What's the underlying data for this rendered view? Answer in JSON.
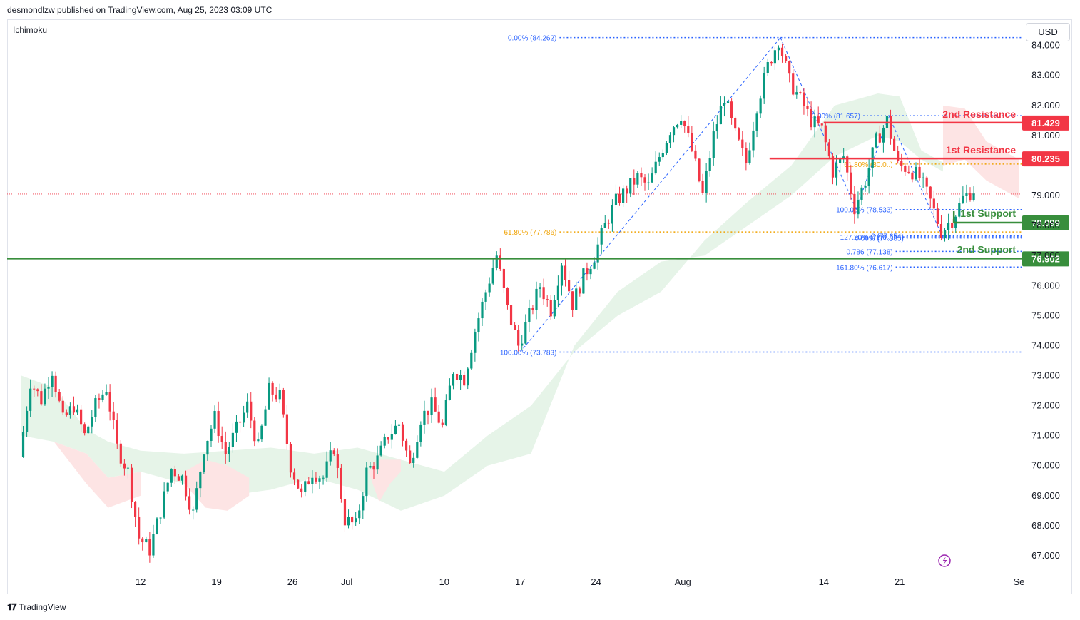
{
  "header": {
    "published_by": "desmondlzw published on TradingView.com, Aug 25, 2023 03:09 UTC"
  },
  "indicator": {
    "name": "Ichimoku"
  },
  "currency": {
    "label": "USD"
  },
  "footer": {
    "brand": "TradingView"
  },
  "colors": {
    "up": "#089981",
    "down": "#f23645",
    "resistance": "#f23645",
    "support": "#388e3c",
    "fib_blue": "#2962ff",
    "fib_orange": "#f0a202",
    "cloud_green": "#e6f4e8",
    "cloud_red": "#fde4e4"
  },
  "chart_data": {
    "type": "candlestick",
    "ylim": [
      66.5,
      84.8
    ],
    "y_ticks": [
      "84.000",
      "83.000",
      "82.000",
      "81.000",
      "79.000",
      "78.000",
      "77.000",
      "76.000",
      "75.000",
      "74.000",
      "73.000",
      "72.000",
      "71.000",
      "70.000",
      "69.000",
      "68.000",
      "67.000"
    ],
    "x_ticks": [
      {
        "label": "12",
        "day": 12
      },
      {
        "label": "19",
        "day": 19
      },
      {
        "label": "26",
        "day": 26
      },
      {
        "label": "Jul",
        "day": 31
      },
      {
        "label": "10",
        "day": 40
      },
      {
        "label": "17",
        "day": 47
      },
      {
        "label": "24",
        "day": 54
      },
      {
        "label": "Aug",
        "day": 62
      },
      {
        "label": "14",
        "day": 75
      },
      {
        "label": "21",
        "day": 82
      },
      {
        "label": "Se",
        "day": 93
      }
    ],
    "current_price": 79.05,
    "price_path": [
      [
        1,
        70.3
      ],
      [
        2,
        72.8
      ],
      [
        3,
        72.2
      ],
      [
        4,
        73.2
      ],
      [
        5,
        71.5
      ],
      [
        6,
        72.0
      ],
      [
        7,
        71.0
      ],
      [
        8,
        72.0
      ],
      [
        9,
        72.6
      ],
      [
        10,
        70.6
      ],
      [
        11,
        69.8
      ],
      [
        12,
        67.6
      ],
      [
        13,
        67.2
      ],
      [
        14,
        68.5
      ],
      [
        15,
        69.9
      ],
      [
        16,
        69.6
      ],
      [
        17,
        68.4
      ],
      [
        18,
        70.6
      ],
      [
        19,
        71.6
      ],
      [
        20,
        70.4
      ],
      [
        21,
        71.2
      ],
      [
        22,
        72.0
      ],
      [
        23,
        70.6
      ],
      [
        24,
        72.5
      ],
      [
        25,
        72.3
      ],
      [
        26,
        70.0
      ],
      [
        27,
        69.0
      ],
      [
        28,
        69.8
      ],
      [
        29,
        69.6
      ],
      [
        30,
        70.6
      ],
      [
        31,
        68.2
      ],
      [
        32,
        68.0
      ],
      [
        33,
        69.8
      ],
      [
        34,
        70.2
      ],
      [
        35,
        71.0
      ],
      [
        36,
        71.4
      ],
      [
        37,
        70.0
      ],
      [
        38,
        71.6
      ],
      [
        39,
        72.0
      ],
      [
        40,
        71.3
      ],
      [
        41,
        73.2
      ],
      [
        42,
        72.9
      ],
      [
        43,
        74.5
      ],
      [
        44,
        75.8
      ],
      [
        45,
        77.0
      ],
      [
        46,
        75.2
      ],
      [
        47,
        74.0
      ],
      [
        48,
        75.0
      ],
      [
        49,
        76.0
      ],
      [
        50,
        75.2
      ],
      [
        51,
        76.8
      ],
      [
        52,
        75.4
      ],
      [
        53,
        76.3
      ],
      [
        54,
        77.0
      ],
      [
        55,
        78.0
      ],
      [
        56,
        78.8
      ],
      [
        57,
        79.2
      ],
      [
        58,
        79.6
      ],
      [
        59,
        79.3
      ],
      [
        60,
        80.3
      ],
      [
        61,
        81.2
      ],
      [
        62,
        81.7
      ],
      [
        63,
        80.5
      ],
      [
        64,
        79.0
      ],
      [
        65,
        81.0
      ],
      [
        66,
        82.3
      ],
      [
        67,
        81.0
      ],
      [
        68,
        80.1
      ],
      [
        69,
        82.0
      ],
      [
        70,
        83.3
      ],
      [
        71,
        84.2
      ],
      [
        72,
        82.8
      ],
      [
        73,
        82.2
      ],
      [
        74,
        81.5
      ],
      [
        75,
        81.2
      ],
      [
        76,
        79.8
      ],
      [
        77,
        80.3
      ],
      [
        78,
        78.6
      ],
      [
        79,
        79.5
      ],
      [
        80,
        80.8
      ],
      [
        81,
        81.5
      ],
      [
        82,
        80.0
      ],
      [
        83,
        79.9
      ],
      [
        84,
        79.6
      ],
      [
        85,
        78.8
      ],
      [
        86,
        77.8
      ],
      [
        87,
        78.2
      ],
      [
        88,
        78.9
      ],
      [
        89,
        79.2
      ]
    ],
    "cloud": {
      "green": [
        [
          1,
          73.0
        ],
        [
          4,
          72.6
        ],
        [
          7,
          71.2
        ],
        [
          9,
          70.8
        ],
        [
          12,
          70.5
        ],
        [
          16,
          70.4
        ],
        [
          20,
          70.5
        ],
        [
          24,
          70.6
        ],
        [
          28,
          70.4
        ],
        [
          32,
          70.6
        ],
        [
          36,
          70.2
        ],
        [
          40,
          69.8
        ],
        [
          44,
          71.0
        ],
        [
          48,
          72.0
        ],
        [
          52,
          73.8
        ],
        [
          56,
          75.0
        ],
        [
          60,
          75.8
        ],
        [
          64,
          77.5
        ],
        [
          68,
          78.8
        ],
        [
          72,
          80.0
        ],
        [
          76,
          82.0
        ],
        [
          80,
          82.4
        ],
        [
          82,
          82.3
        ],
        [
          84,
          80.5
        ],
        [
          86,
          80.1
        ]
      ],
      "red": [
        [
          1,
          71.0
        ],
        [
          4,
          70.8
        ],
        [
          7,
          70.4
        ],
        [
          9,
          69.6
        ],
        [
          12,
          69.8
        ],
        [
          16,
          69.4
        ],
        [
          20,
          69.0
        ],
        [
          24,
          69.2
        ],
        [
          28,
          69.6
        ],
        [
          32,
          69.2
        ],
        [
          36,
          68.5
        ],
        [
          40,
          69.0
        ],
        [
          44,
          70.0
        ],
        [
          48,
          70.4
        ],
        [
          52,
          74.0
        ],
        [
          56,
          75.8
        ],
        [
          60,
          76.8
        ],
        [
          64,
          77.0
        ],
        [
          68,
          78.0
        ],
        [
          72,
          79.0
        ],
        [
          76,
          80.3
        ],
        [
          80,
          81.0
        ],
        [
          82,
          80.8
        ],
        [
          84,
          80.2
        ],
        [
          86,
          79.8
        ]
      ],
      "future_red": [
        [
          86,
          80.0
        ],
        [
          88,
          80.2
        ],
        [
          90,
          79.5
        ],
        [
          93,
          78.9
        ]
      ]
    },
    "levels": [
      {
        "name": "2nd Resistance",
        "value": 81.429,
        "label": "81.429",
        "kind": "resistance",
        "from_day": 75
      },
      {
        "name": "1st Resistance",
        "value": 80.235,
        "label": "80.235",
        "kind": "resistance",
        "from_day": 70
      },
      {
        "name": "1st Support",
        "value": 78.099,
        "label": "78.099",
        "kind": "support",
        "from_day": 87
      },
      {
        "name": "2nd Support",
        "value": 76.902,
        "label": "76.902",
        "kind": "support",
        "from_day": 0
      }
    ],
    "fib_lines": [
      {
        "label": "0.00% (84.262)",
        "value": 84.262,
        "from_day": 48,
        "color": "blue"
      },
      {
        "label": "61.80% (77.786)",
        "value": 77.786,
        "from_day": 48,
        "color": "orange"
      },
      {
        "label": "100.00% (73.783)",
        "value": 73.783,
        "from_day": 48,
        "color": "blue"
      },
      {
        "label": "0.00% (81.657)",
        "value": 81.657,
        "from_day": 76,
        "color": "blue"
      },
      {
        "label": "61.80% (80.0..)",
        "value": 80.05,
        "from_day": 79,
        "color": "orange"
      },
      {
        "label": "100.00% (78.533)",
        "value": 78.533,
        "from_day": 79,
        "color": "blue"
      },
      {
        "label": "0 (77.654)",
        "value": 77.654,
        "from_day": 80,
        "color": "blue"
      },
      {
        "label": "127.20% (77.6..)",
        "value": 77.62,
        "from_day": 79,
        "color": "blue"
      },
      {
        "label": "0.00% (77.585)",
        "value": 77.585,
        "from_day": 80,
        "color": "blue"
      },
      {
        "label": "0.786 (77.138)",
        "value": 77.138,
        "from_day": 79,
        "color": "blue"
      },
      {
        "label": "161.80% (76.617)",
        "value": 76.617,
        "from_day": 79,
        "color": "blue"
      }
    ]
  }
}
